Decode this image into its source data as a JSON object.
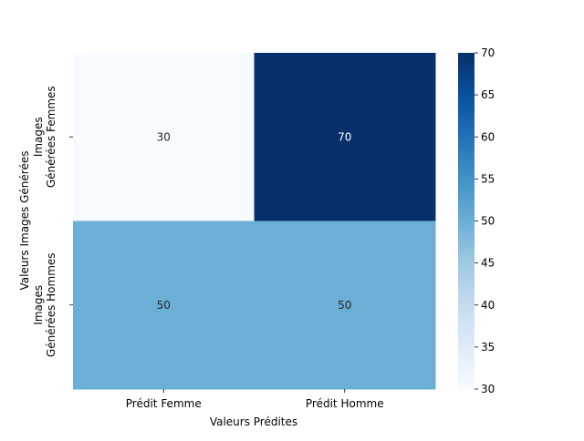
{
  "chart_data": {
    "type": "heatmap",
    "xlabel": "Valeurs Prédites",
    "ylabel": "Valeurs Images Générées",
    "x_categories": [
      "Prédit Femme",
      "Prédit Homme"
    ],
    "y_categories": [
      [
        "Images",
        "Générées Femmes"
      ],
      [
        "Images",
        "Générées Hommes"
      ]
    ],
    "values": [
      [
        30,
        70
      ],
      [
        50,
        50
      ]
    ],
    "annotations": [
      [
        "30",
        "70"
      ],
      [
        "50",
        "50"
      ]
    ],
    "colorbar": {
      "min": 30,
      "max": 70,
      "ticks": [
        30,
        35,
        40,
        45,
        50,
        55,
        60,
        65,
        70
      ],
      "colormap": "Blues",
      "stops": [
        "#f7fbff",
        "#deebf7",
        "#c6dbef",
        "#9ecae1",
        "#6baed6",
        "#4292c6",
        "#2171b5",
        "#08519c",
        "#08306b"
      ]
    }
  }
}
